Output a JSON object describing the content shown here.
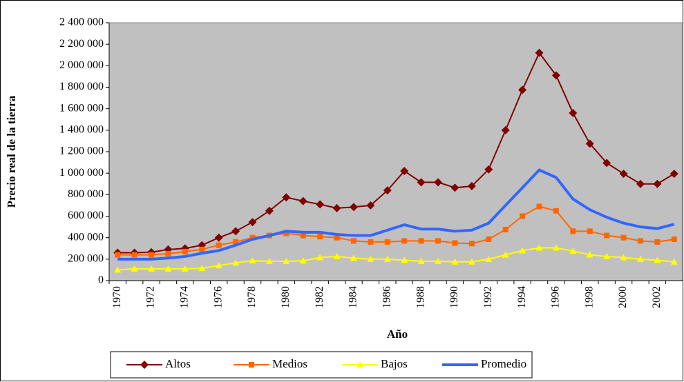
{
  "chart_data": {
    "type": "line",
    "x_label": "Año",
    "y_label": "Precio real de la tierra",
    "categories": [
      "1970",
      null,
      "1972",
      null,
      "1974",
      null,
      "1976",
      null,
      "1978",
      null,
      "1980",
      null,
      "1982",
      null,
      "1984",
      null,
      "1986",
      null,
      "1988",
      null,
      "1990",
      null,
      "1992",
      null,
      "1994",
      null,
      "1996",
      null,
      "1998",
      null,
      "2000",
      null,
      "2002",
      null
    ],
    "series": [
      {
        "name": "Altos",
        "color": "#800000",
        "marker": "diamond",
        "values": [
          260000,
          260000,
          265000,
          290000,
          300000,
          330000,
          400000,
          460000,
          545000,
          650000,
          775000,
          740000,
          710000,
          675000,
          685000,
          700000,
          840000,
          1020000,
          915000,
          915000,
          865000,
          880000,
          1035000,
          1400000,
          1775000,
          2120000,
          1910000,
          1560000,
          1275000,
          1095000,
          995000,
          900000,
          900000,
          995000
        ]
      },
      {
        "name": "Medios",
        "color": "#ff6600",
        "marker": "square",
        "values": [
          240000,
          240000,
          240000,
          250000,
          270000,
          290000,
          330000,
          360000,
          400000,
          420000,
          440000,
          420000,
          410000,
          400000,
          370000,
          360000,
          360000,
          370000,
          370000,
          370000,
          350000,
          345000,
          385000,
          475000,
          600000,
          690000,
          650000,
          460000,
          460000,
          420000,
          400000,
          370000,
          360000,
          385000
        ]
      },
      {
        "name": "Bajos",
        "color": "#ffff00",
        "marker": "triangle",
        "values": [
          100000,
          110000,
          110000,
          110000,
          110000,
          115000,
          140000,
          165000,
          185000,
          180000,
          180000,
          185000,
          215000,
          225000,
          210000,
          200000,
          200000,
          190000,
          180000,
          180000,
          175000,
          175000,
          200000,
          240000,
          280000,
          305000,
          305000,
          275000,
          240000,
          225000,
          215000,
          200000,
          190000,
          175000
        ]
      },
      {
        "name": "Promedio",
        "color": "#3366ff",
        "marker": "none",
        "values": [
          200000,
          200000,
          200000,
          210000,
          225000,
          255000,
          280000,
          330000,
          385000,
          420000,
          460000,
          450000,
          450000,
          430000,
          420000,
          420000,
          470000,
          520000,
          480000,
          480000,
          460000,
          470000,
          535000,
          700000,
          865000,
          1030000,
          960000,
          760000,
          660000,
          590000,
          535000,
          500000,
          485000,
          525000
        ]
      }
    ],
    "ylim": [
      0,
      2400000
    ],
    "yticks": [
      0,
      {
        "value": 200000,
        "label": "200 000"
      },
      {
        "value": 400000,
        "label": "400 000"
      },
      {
        "value": 600000,
        "label": "600 000"
      },
      {
        "value": 800000,
        "label": "800 000"
      },
      {
        "value": 1000000,
        "label": "1 000 000"
      },
      {
        "value": 1200000,
        "label": "1 200 000"
      },
      {
        "value": 1400000,
        "label": "1 400 000"
      },
      {
        "value": 1600000,
        "label": "1 600 000"
      },
      {
        "value": 1800000,
        "label": "1 800 000"
      },
      {
        "value": 2000000,
        "label": "2 000 000"
      },
      {
        "value": 2200000,
        "label": "2 200 000"
      },
      {
        "value": 2400000,
        "label": "2 400 000"
      }
    ],
    "grid": false,
    "legend": "bottom",
    "plot_background": "#c0c0c0"
  }
}
